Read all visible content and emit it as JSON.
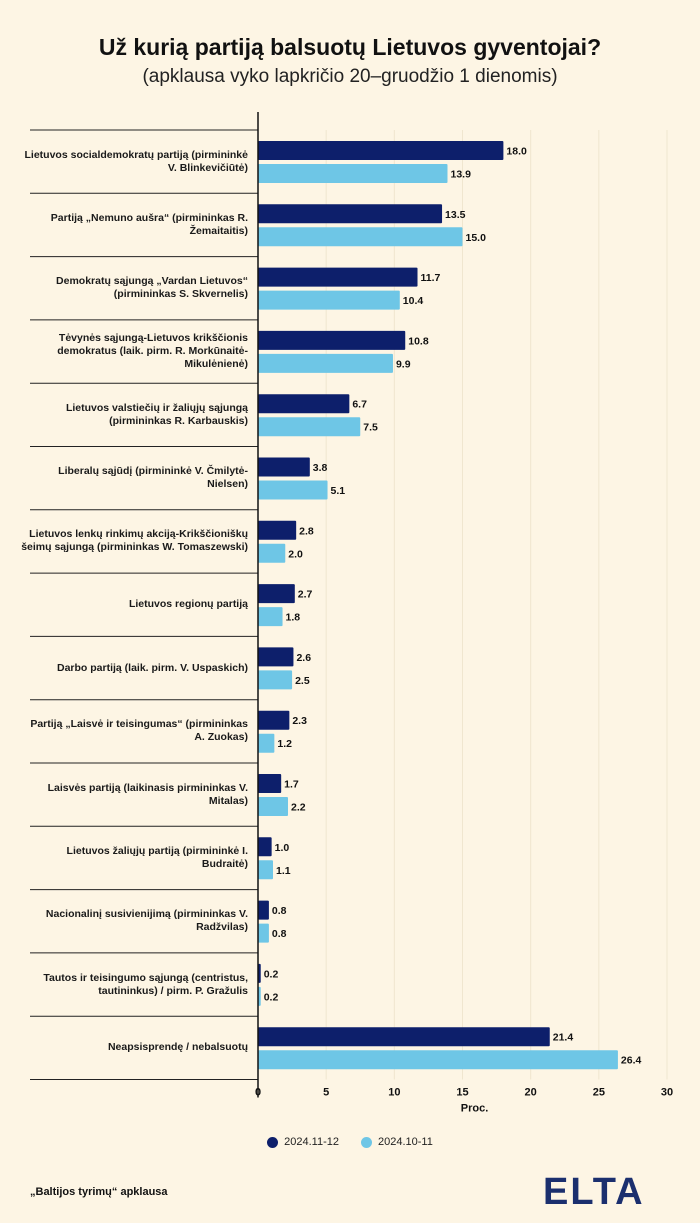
{
  "title": "Už kurią partiją balsuotų Lietuvos gyventojai?",
  "subtitle": "(apklausa vyko lapkričio 20–gruodžio 1 dienomis)",
  "source": "„Baltijos tyrimų“ apklausa",
  "logo_text": "ELTA",
  "colors": {
    "series1": "#0d1f6b",
    "series2": "#6ec6e6",
    "background": "#fdf5e4"
  },
  "chart_data": {
    "type": "bar",
    "orientation": "horizontal",
    "categories": [
      "Lietuvos socialdemokratų partiją (pirmininkė V. Blinkevičiūtė)",
      "Partiją „Nemuno aušra“ (pirmininkas R. Žemaitaitis)",
      "Demokratų sąjungą „Vardan Lietuvos“ (pirmininkas S. Skvernelis)",
      "Tėvynės sąjungą-Lietuvos krikščionis demokratus (laik. pirm. R. Morkūnaitė-Mikulėnienė)",
      "Lietuvos valstiečių ir žaliųjų sąjungą (pirmininkas R. Karbauskis)",
      "Liberalų sąjūdį (pirmininkė V. Čmilytė-Nielsen)",
      "Lietuvos lenkų rinkimų akciją-Krikščioniškų šeimų sąjungą (pirmininkas W. Tomaszewski)",
      "Lietuvos regionų partiją",
      "Darbo partiją (laik. pirm. V. Uspaskich)",
      "Partiją „Laisvė ir teisingumas“ (pirmininkas A. Zuokas)",
      "Laisvės partiją (laikinasis pirmininkas V. Mitalas)",
      "Lietuvos žaliųjų partiją (pirmininkė I. Budraitė)",
      "Nacionalinį susivienijimą (pirmininkas V. Radžvilas)",
      "Tautos ir teisingumo sąjungą (centristus, tautininkus) / pirm. P. Gražulis",
      "Neapsisprendę / nebalsuotų"
    ],
    "series": [
      {
        "name": "2024.11-12",
        "values": [
          18.0,
          13.5,
          11.7,
          10.8,
          6.7,
          3.8,
          2.8,
          2.7,
          2.6,
          2.3,
          1.7,
          1.0,
          0.8,
          0.2,
          21.4
        ]
      },
      {
        "name": "2024.10-11",
        "values": [
          13.9,
          15.0,
          10.4,
          9.9,
          7.5,
          5.1,
          2.0,
          1.8,
          2.5,
          1.2,
          2.2,
          1.1,
          0.8,
          0.2,
          26.4
        ]
      }
    ],
    "xlim": [
      0,
      30
    ],
    "xticks": [
      "0",
      "5",
      "10",
      "15",
      "20",
      "25",
      "30"
    ],
    "xlabel": "Proc.",
    "grid": true,
    "legend_position": "bottom"
  }
}
